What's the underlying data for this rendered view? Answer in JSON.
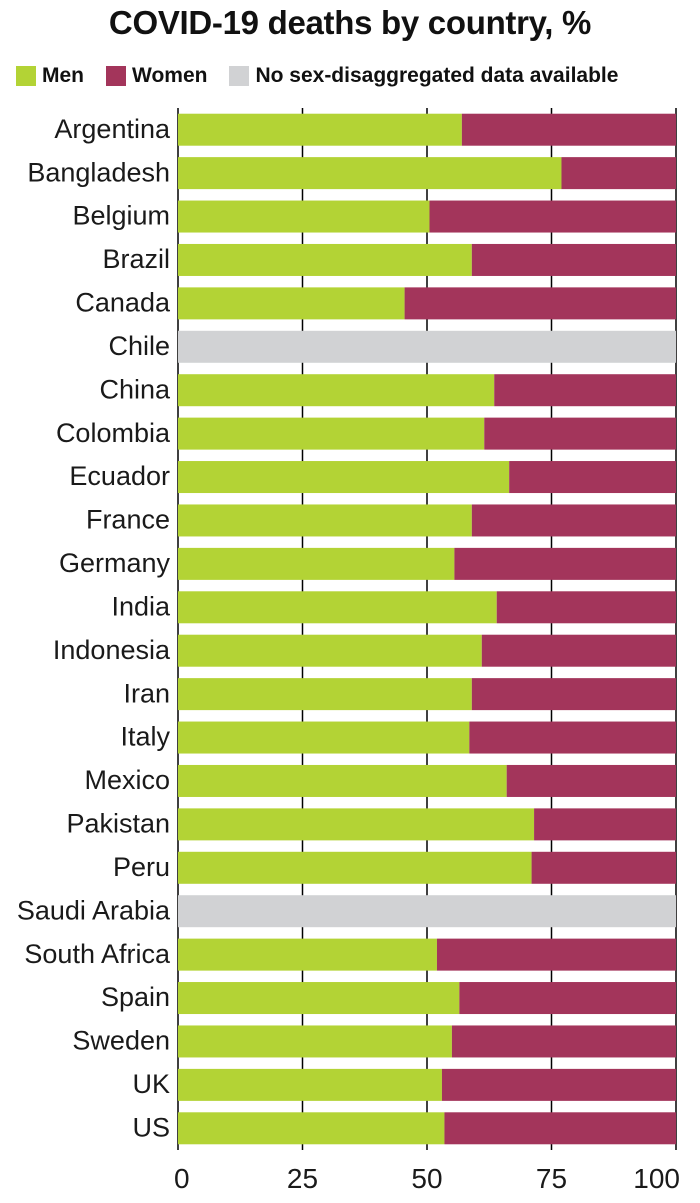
{
  "chart_data": {
    "type": "bar",
    "orientation": "horizontal",
    "stacked": true,
    "title": "COVID-19 deaths by country, %",
    "xlabel": "",
    "ylabel": "",
    "xlim": [
      0,
      100
    ],
    "xticks": [
      0,
      25,
      50,
      75,
      100
    ],
    "grid": true,
    "legend": [
      {
        "name": "Men",
        "color": "#b3d335"
      },
      {
        "name": "Women",
        "color": "#a3355b"
      },
      {
        "name": "No sex-disaggregated data available",
        "color": "#d1d2d4"
      }
    ],
    "categories": [
      "Argentina",
      "Bangladesh",
      "Belgium",
      "Brazil",
      "Canada",
      "Chile",
      "China",
      "Colombia",
      "Ecuador",
      "France",
      "Germany",
      "India",
      "Indonesia",
      "Iran",
      "Italy",
      "Mexico",
      "Pakistan",
      "Peru",
      "Saudi Arabia",
      "South Africa",
      "Spain",
      "Sweden",
      "UK",
      "US"
    ],
    "series": [
      {
        "name": "Men",
        "values": [
          57,
          77,
          50.5,
          59,
          45.5,
          null,
          63.5,
          61.5,
          66.5,
          59,
          55.5,
          64,
          61,
          59,
          58.5,
          66,
          71.5,
          71,
          null,
          52,
          56.5,
          55,
          53,
          53.5
        ]
      },
      {
        "name": "Women",
        "values": [
          43,
          23,
          49.5,
          41,
          54.5,
          null,
          36.5,
          38.5,
          33.5,
          41,
          44.5,
          36,
          39,
          41,
          41.5,
          34,
          28.5,
          29,
          null,
          48,
          43.5,
          45,
          47,
          46.5
        ]
      }
    ]
  }
}
